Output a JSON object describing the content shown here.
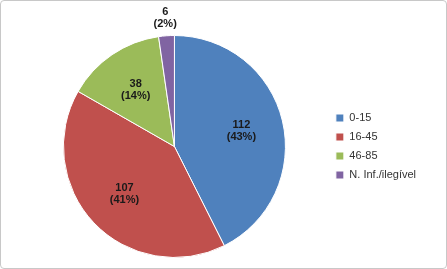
{
  "chart_data": {
    "type": "pie",
    "categories": [
      "0-15",
      "16-45",
      "46-85",
      "N. Inf./ilegível"
    ],
    "values": [
      112,
      107,
      38,
      6
    ],
    "value_labels": [
      [
        "112",
        "(43%)"
      ],
      [
        "107",
        "(41%)"
      ],
      [
        "38",
        "(14%)"
      ],
      [
        "6",
        "(2%)"
      ]
    ],
    "colors": [
      "#4f81bd",
      "#c0504d",
      "#9bbb59",
      "#8064a2"
    ],
    "legend": "right",
    "data_labels": true
  }
}
